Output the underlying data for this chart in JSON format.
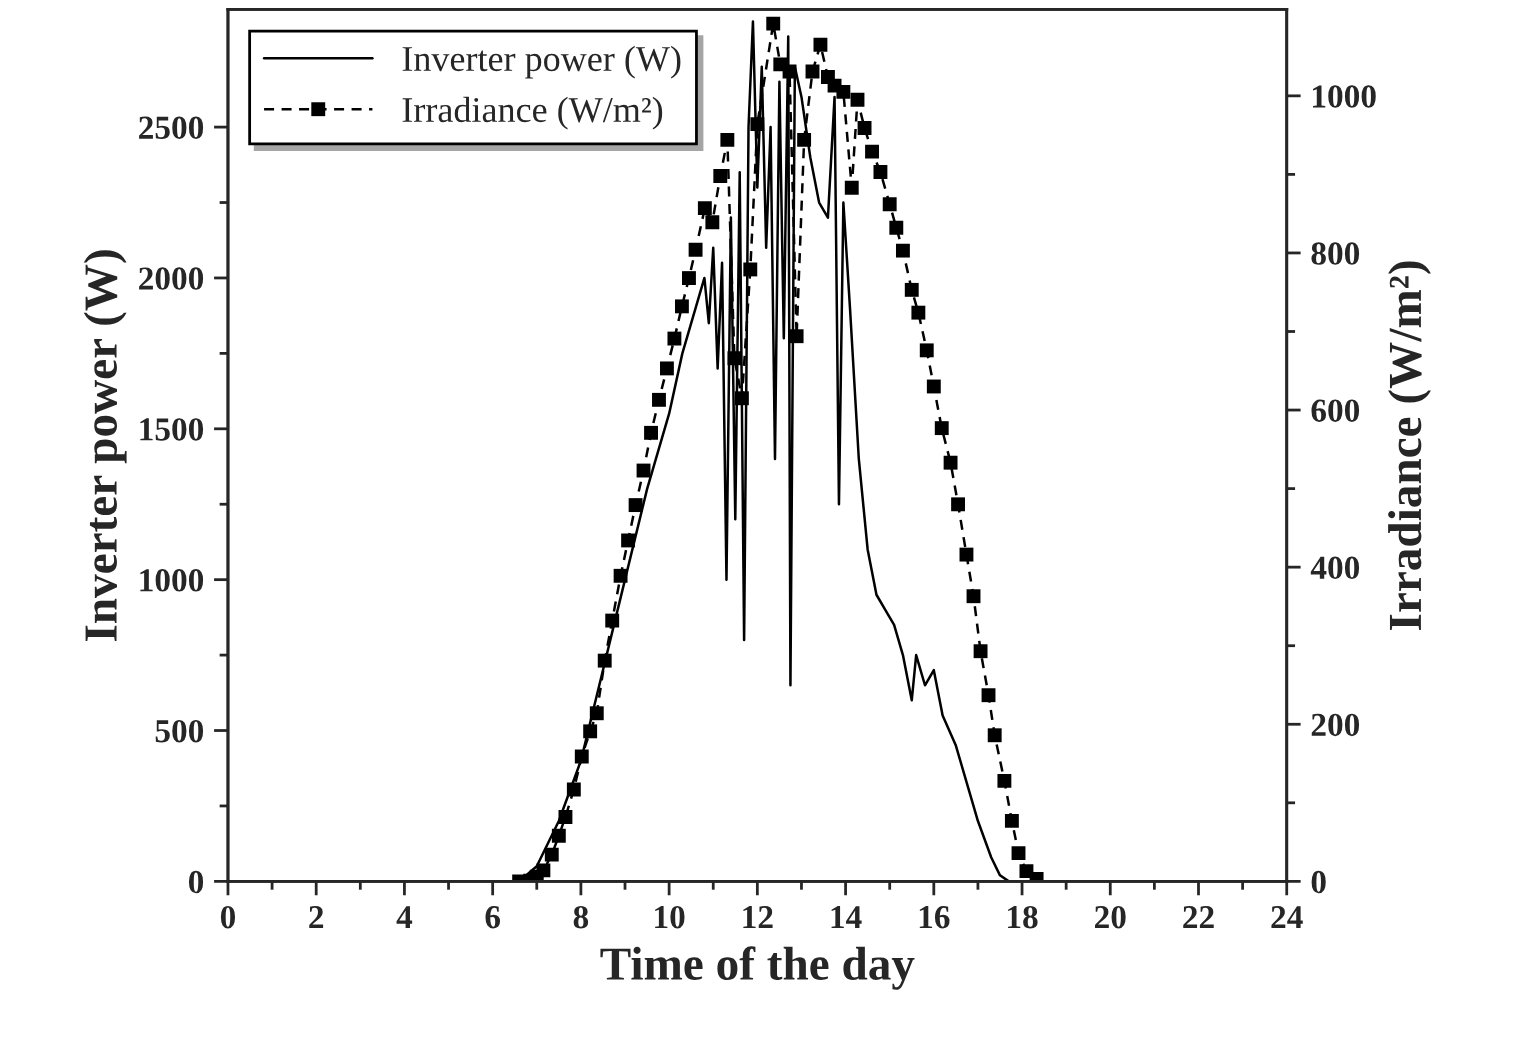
{
  "chart_data": {
    "type": "line",
    "xlabel": "Time of the day",
    "ylabel": "Inverter power (W)",
    "y2label": "Irradiance (W/m²)",
    "xlim": [
      0,
      24
    ],
    "xticks": [
      0,
      2,
      4,
      6,
      8,
      10,
      12,
      14,
      16,
      18,
      20,
      22,
      24
    ],
    "ylim": [
      0,
      2890
    ],
    "yticks": [
      0,
      500,
      1000,
      1500,
      2000,
      2500
    ],
    "y2lim": [
      0,
      1110
    ],
    "y2ticks": [
      0,
      200,
      400,
      600,
      800,
      1000
    ],
    "legend": "top left",
    "grid": false,
    "series": [
      {
        "name": "Inverter power (W)",
        "color": "#000000",
        "marker": "none",
        "line_style": "solid",
        "x": [
          6.6,
          7,
          7.5,
          8,
          8.5,
          9,
          9.5,
          10,
          10.3,
          10.6,
          10.8,
          10.9,
          11.0,
          11.1,
          11.2,
          11.3,
          11.4,
          11.5,
          11.6,
          11.7,
          11.8,
          11.9,
          12.0,
          12.1,
          12.2,
          12.3,
          12.4,
          12.5,
          12.6,
          12.7,
          12.75,
          12.85,
          13.0,
          13.2,
          13.4,
          13.6,
          13.75,
          13.85,
          13.95,
          14.1,
          14.3,
          14.5,
          14.7,
          14.9,
          15.1,
          15.3,
          15.5,
          15.6,
          15.8,
          16.0,
          16.2,
          16.5,
          16.8,
          17.0,
          17.3,
          17.5,
          17.7
        ],
        "values": [
          0,
          50,
          200,
          400,
          700,
          1000,
          1300,
          1550,
          1750,
          1900,
          2000,
          1850,
          2100,
          1700,
          2050,
          1000,
          2200,
          1200,
          2350,
          800,
          2500,
          2850,
          2300,
          2700,
          2100,
          2500,
          1400,
          2650,
          1800,
          2800,
          650,
          2700,
          2600,
          2400,
          2250,
          2200,
          2600,
          1250,
          2250,
          1900,
          1400,
          1100,
          950,
          900,
          850,
          750,
          600,
          750,
          650,
          700,
          550,
          450,
          300,
          200,
          80,
          20,
          0
        ]
      },
      {
        "name": "Irradiance (W/m²)",
        "color": "#000000",
        "axis": "y2",
        "marker": "square",
        "line_style": "dashed",
        "x": [
          6.6,
          6.85,
          7.0,
          7.15,
          7.34,
          7.5,
          7.65,
          7.84,
          8.02,
          8.21,
          8.36,
          8.54,
          8.71,
          8.9,
          9.07,
          9.24,
          9.42,
          9.59,
          9.77,
          9.95,
          10.12,
          10.29,
          10.45,
          10.6,
          10.81,
          10.98,
          11.16,
          11.32,
          11.48,
          11.65,
          11.84,
          12.0,
          12.36,
          12.52,
          12.73,
          12.89,
          13.06,
          13.25,
          13.43,
          13.6,
          13.75,
          13.95,
          14.14,
          14.27,
          14.43,
          14.6,
          14.79,
          15.0,
          15.15,
          15.3,
          15.5,
          15.65,
          15.84,
          16.0,
          16.18,
          16.38,
          16.55,
          16.74,
          16.9,
          17.06,
          17.24,
          17.38,
          17.6,
          17.77,
          17.92,
          18.1,
          18.33
        ],
        "values": [
          0,
          1,
          6,
          14,
          34,
          58,
          82,
          117,
          159,
          191,
          214,
          281,
          332,
          389,
          434,
          479,
          523,
          571,
          613,
          653,
          691,
          732,
          768,
          804,
          857,
          839,
          898,
          944,
          666,
          615,
          779,
          964,
          1092,
          1040,
          1031,
          694,
          944,
          1031,
          1065,
          1024,
          1013,
          1005,
          883,
          995,
          959,
          929,
          903,
          862,
          832,
          803,
          753,
          724,
          676,
          630,
          577,
          533,
          480,
          416,
          363,
          293,
          237,
          186,
          128,
          77,
          36,
          13,
          3
        ]
      }
    ]
  }
}
